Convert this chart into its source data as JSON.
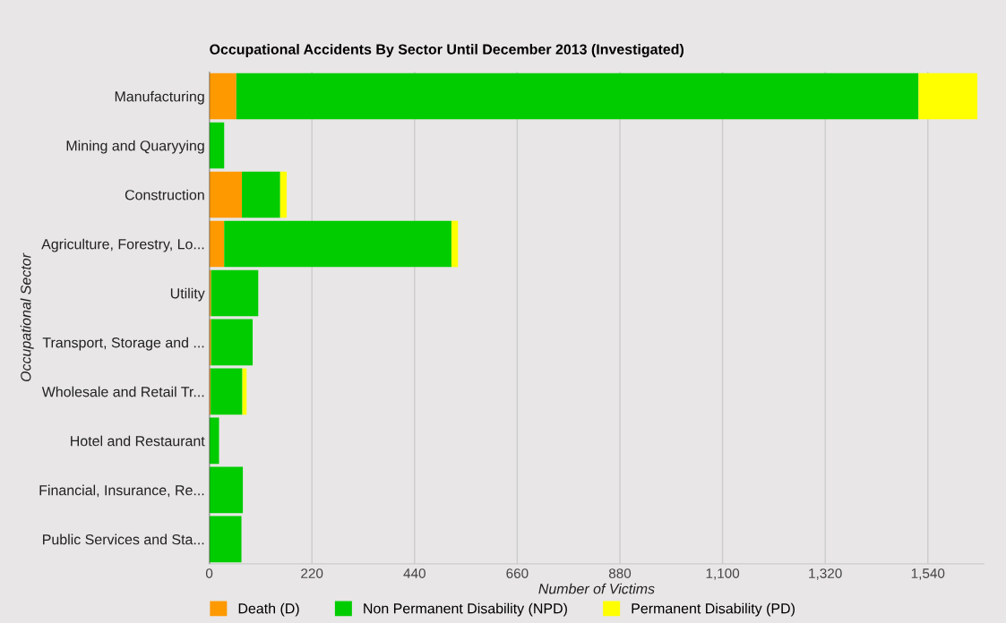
{
  "chart_data": {
    "type": "bar",
    "orientation": "horizontal",
    "stacked": true,
    "title": "Occupational Accidents By Sector Until December 2013 (Investigated)",
    "xlabel": "Number of Victims",
    "ylabel": "Occupational Sector",
    "categories": [
      "Manufacturing",
      "Mining and Quaryying",
      "Construction",
      "Agriculture, Forestry, Lo...",
      "Utility",
      "Transport, Storage and ...",
      "Wholesale and Retail Tr...",
      "Hotel and Restaurant",
      "Financial, Insurance, Re...",
      "Public Services and Sta..."
    ],
    "series": [
      {
        "name": "Death (D)",
        "color": "#ff9900",
        "values": [
          58,
          0,
          70,
          32,
          4,
          4,
          3,
          0,
          0,
          0
        ]
      },
      {
        "name": "Non Permanent Disability (NPD)",
        "color": "#00cc00",
        "values": [
          1462,
          32,
          82,
          487,
          101,
          89,
          68,
          21,
          72,
          69
        ]
      },
      {
        "name": "Permanent Disability (PD)",
        "color": "#ffff00",
        "values": [
          126,
          0,
          14,
          14,
          0,
          0,
          9,
          0,
          0,
          0
        ]
      }
    ],
    "xlim": [
      0,
      1660
    ],
    "xticks": [
      0,
      {
        "value": 220,
        "label": "220"
      },
      {
        "value": 440,
        "label": "440"
      },
      {
        "value": 660,
        "label": "660"
      },
      {
        "value": 880,
        "label": "880"
      },
      {
        "value": 1100,
        "label": "1,100"
      },
      {
        "value": 1320,
        "label": "1,320"
      },
      {
        "value": 1540,
        "label": "1,540"
      }
    ],
    "grid": "x",
    "legend": "bottom"
  }
}
